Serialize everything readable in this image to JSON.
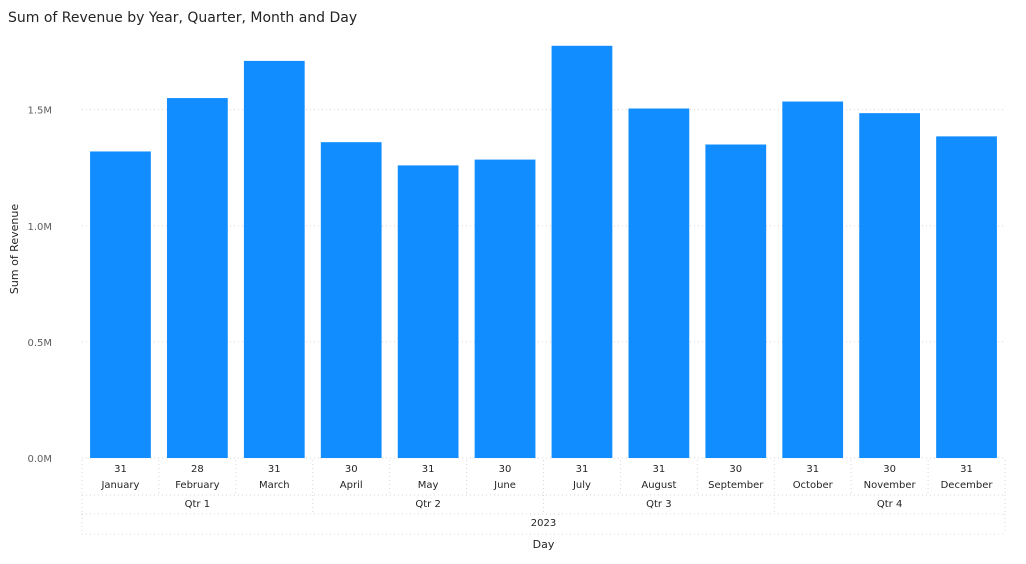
{
  "chart_data": {
    "type": "bar",
    "title": "Sum of Revenue by Year, Quarter, Month and Day",
    "xlabel": "Day",
    "ylabel": "Sum of Revenue",
    "ylim": [
      0,
      1800000
    ],
    "yticks": [
      {
        "value": 0,
        "label": "0.0M"
      },
      {
        "value": 500000,
        "label": "0.5M"
      },
      {
        "value": 1000000,
        "label": "1.0M"
      },
      {
        "value": 1500000,
        "label": "1.5M"
      }
    ],
    "grid": true,
    "bar_color": "#118DFF",
    "year": "2023",
    "quarters": [
      {
        "label": "Qtr 1",
        "months": 3
      },
      {
        "label": "Qtr 2",
        "months": 3
      },
      {
        "label": "Qtr 3",
        "months": 3
      },
      {
        "label": "Qtr 4",
        "months": 3
      }
    ],
    "categories": [
      {
        "month": "January",
        "day": "31"
      },
      {
        "month": "February",
        "day": "28"
      },
      {
        "month": "March",
        "day": "31"
      },
      {
        "month": "April",
        "day": "30"
      },
      {
        "month": "May",
        "day": "31"
      },
      {
        "month": "June",
        "day": "30"
      },
      {
        "month": "July",
        "day": "31"
      },
      {
        "month": "August",
        "day": "31"
      },
      {
        "month": "September",
        "day": "30"
      },
      {
        "month": "October",
        "day": "31"
      },
      {
        "month": "November",
        "day": "30"
      },
      {
        "month": "December",
        "day": "31"
      }
    ],
    "values": [
      1320000,
      1550000,
      1710000,
      1360000,
      1260000,
      1285000,
      1775000,
      1505000,
      1350000,
      1535000,
      1485000,
      1385000
    ]
  }
}
